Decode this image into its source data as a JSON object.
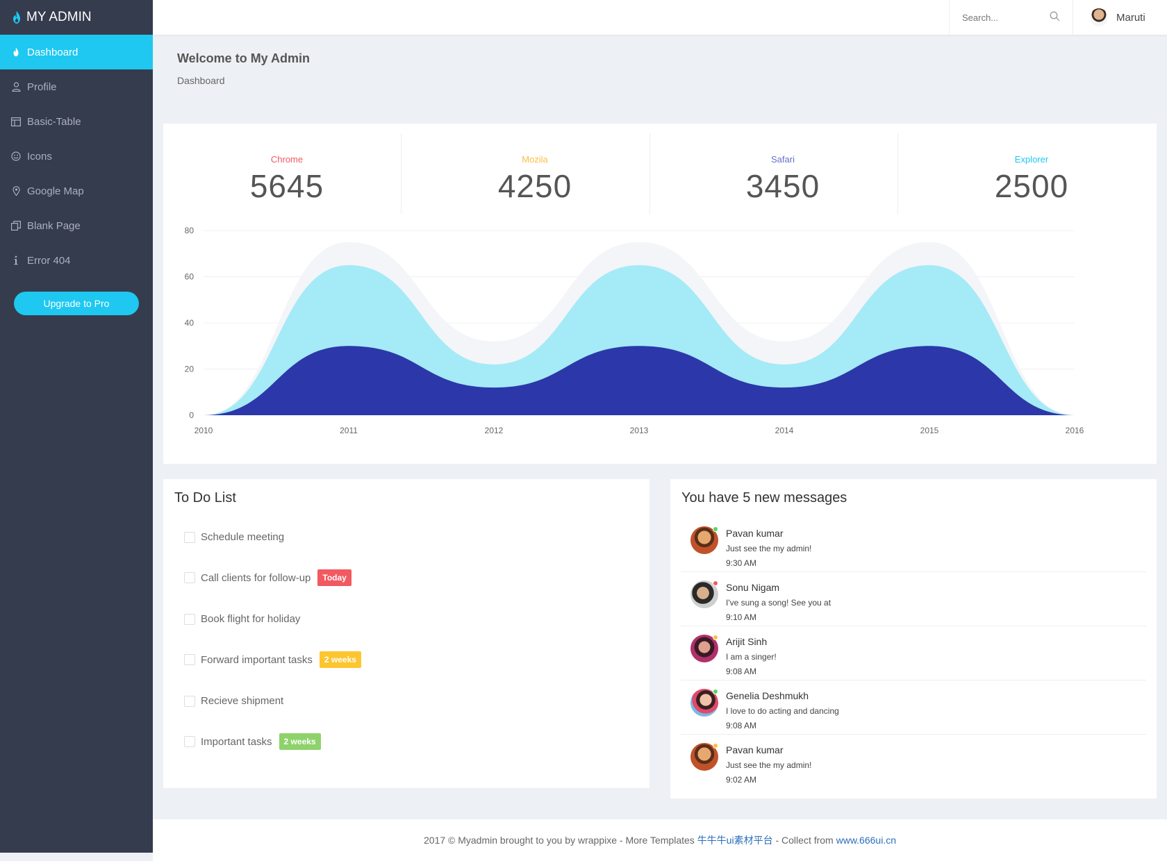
{
  "brand": {
    "name": "MY ADMIN"
  },
  "sidebar": {
    "items": [
      {
        "label": "Dashboard",
        "icon": "flame-icon",
        "active": true
      },
      {
        "label": "Profile",
        "icon": "user-icon"
      },
      {
        "label": "Basic-Table",
        "icon": "table-icon"
      },
      {
        "label": "Icons",
        "icon": "smiley-icon"
      },
      {
        "label": "Google Map",
        "icon": "map-pin-icon"
      },
      {
        "label": "Blank Page",
        "icon": "copy-icon"
      },
      {
        "label": "Error 404",
        "icon": "info-icon"
      }
    ],
    "upgrade_label": "Upgrade to Pro"
  },
  "topbar": {
    "search_placeholder": "Search...",
    "user_name": "Maruti"
  },
  "page": {
    "title": "Welcome to My Admin",
    "breadcrumb": "Dashboard"
  },
  "stats": [
    {
      "label": "Chrome",
      "value": "5645",
      "color": "#f25961"
    },
    {
      "label": "Mozila",
      "value": "4250",
      "color": "#fdbd44"
    },
    {
      "label": "Safari",
      "value": "3450",
      "color": "#6471c8"
    },
    {
      "label": "Explorer",
      "value": "2500",
      "color": "#1ec8f0"
    }
  ],
  "chart_data": {
    "type": "area",
    "x": [
      "2010",
      "2011",
      "2012",
      "2013",
      "2014",
      "2015",
      "2016"
    ],
    "ylim": [
      0,
      80
    ],
    "yticks": [
      "0",
      "20",
      "40",
      "60",
      "80"
    ],
    "grid": true,
    "series": [
      {
        "values": [
          0,
          75,
          32,
          75,
          32,
          75,
          0
        ],
        "color": "#f4f5f8"
      },
      {
        "values": [
          0,
          65,
          22,
          65,
          22,
          65,
          0
        ],
        "color": "#a5eaf7"
      },
      {
        "values": [
          0,
          30,
          12,
          30,
          12,
          30,
          0
        ],
        "color": "#2c38a9"
      }
    ]
  },
  "todo": {
    "title": "To Do List",
    "items": [
      {
        "label": "Schedule meeting",
        "badge": ""
      },
      {
        "label": "Call clients for follow-up",
        "badge": "Today",
        "badge_color": "#f25961"
      },
      {
        "label": "Book flight for holiday",
        "badge": ""
      },
      {
        "label": "Forward important tasks",
        "badge": "2 weeks",
        "badge_color": "#fdc52f"
      },
      {
        "label": "Recieve shipment",
        "badge": ""
      },
      {
        "label": "Important tasks",
        "badge": "2 weeks",
        "badge_color": "#8ed26b"
      }
    ]
  },
  "messages": {
    "title": "You have 5 new messages",
    "items": [
      {
        "name": "Pavan kumar",
        "text": "Just see the my admin!",
        "time": "9:30 AM",
        "status_color": "#4cd964"
      },
      {
        "name": "Sonu Nigam",
        "text": "I've sung a song! See you at",
        "time": "9:10 AM",
        "status_color": "#f25961"
      },
      {
        "name": "Arijit Sinh",
        "text": "I am a singer!",
        "time": "9:08 AM",
        "status_color": "#fdbd44"
      },
      {
        "name": "Genelia Deshmukh",
        "text": "I love to do acting and dancing",
        "time": "9:08 AM",
        "status_color": "#4cd964"
      },
      {
        "name": "Pavan kumar",
        "text": "Just see the my admin!",
        "time": "9:02 AM",
        "status_color": "#fdbd44"
      }
    ]
  },
  "footer": {
    "prefix": "2017 © Myadmin brought to you by wrappixe - More Templates ",
    "link1": "牛牛牛ui素材平台",
    "middle": " - Collect from ",
    "link2": "www.666ui.cn"
  }
}
